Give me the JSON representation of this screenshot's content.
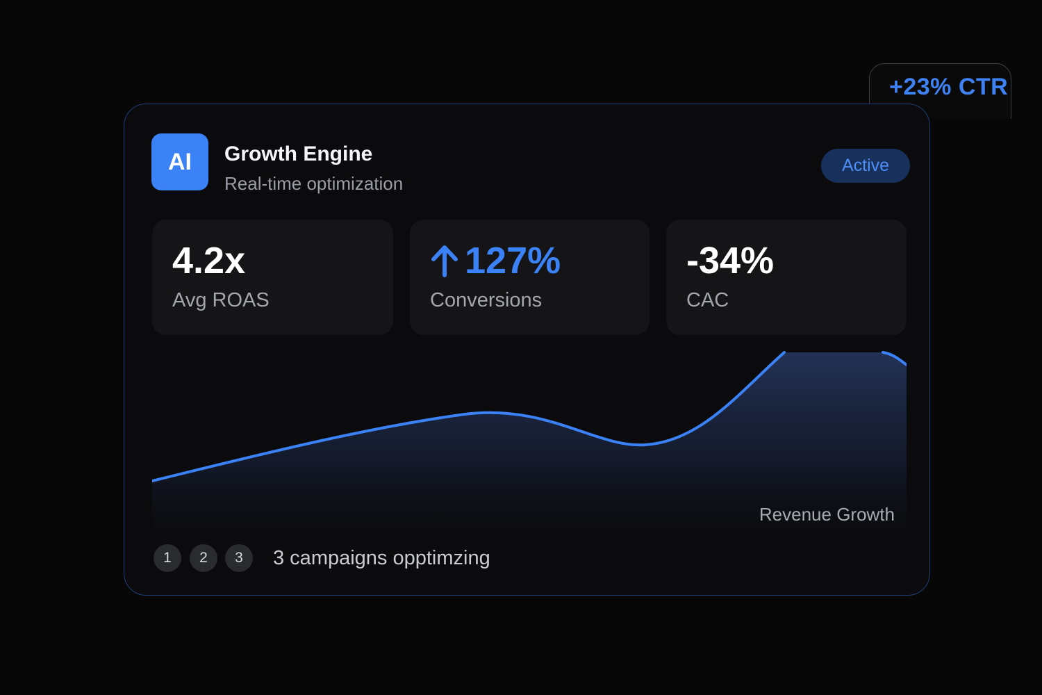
{
  "badge": {
    "text": "+23% CTR"
  },
  "header": {
    "logo_text": "AI",
    "title": "Growth Engine",
    "subtitle": "Real-time optimization",
    "status": "Active"
  },
  "metrics": [
    {
      "value": "4.2x",
      "label": "Avg ROAS"
    },
    {
      "value": "127%",
      "label": "Conversions",
      "icon": "arrow-up-icon",
      "color": "#3b82f6"
    },
    {
      "value": "-34%",
      "label": "CAC"
    }
  ],
  "chart_caption": "Revenue Growth",
  "footer": {
    "steps": [
      "1",
      "2",
      "3"
    ],
    "text": "3 campaigns opptimzing"
  },
  "colors": {
    "accent": "#3b82f6",
    "card_border": "#1f3e7a",
    "pill_bg": "#17305c"
  }
}
